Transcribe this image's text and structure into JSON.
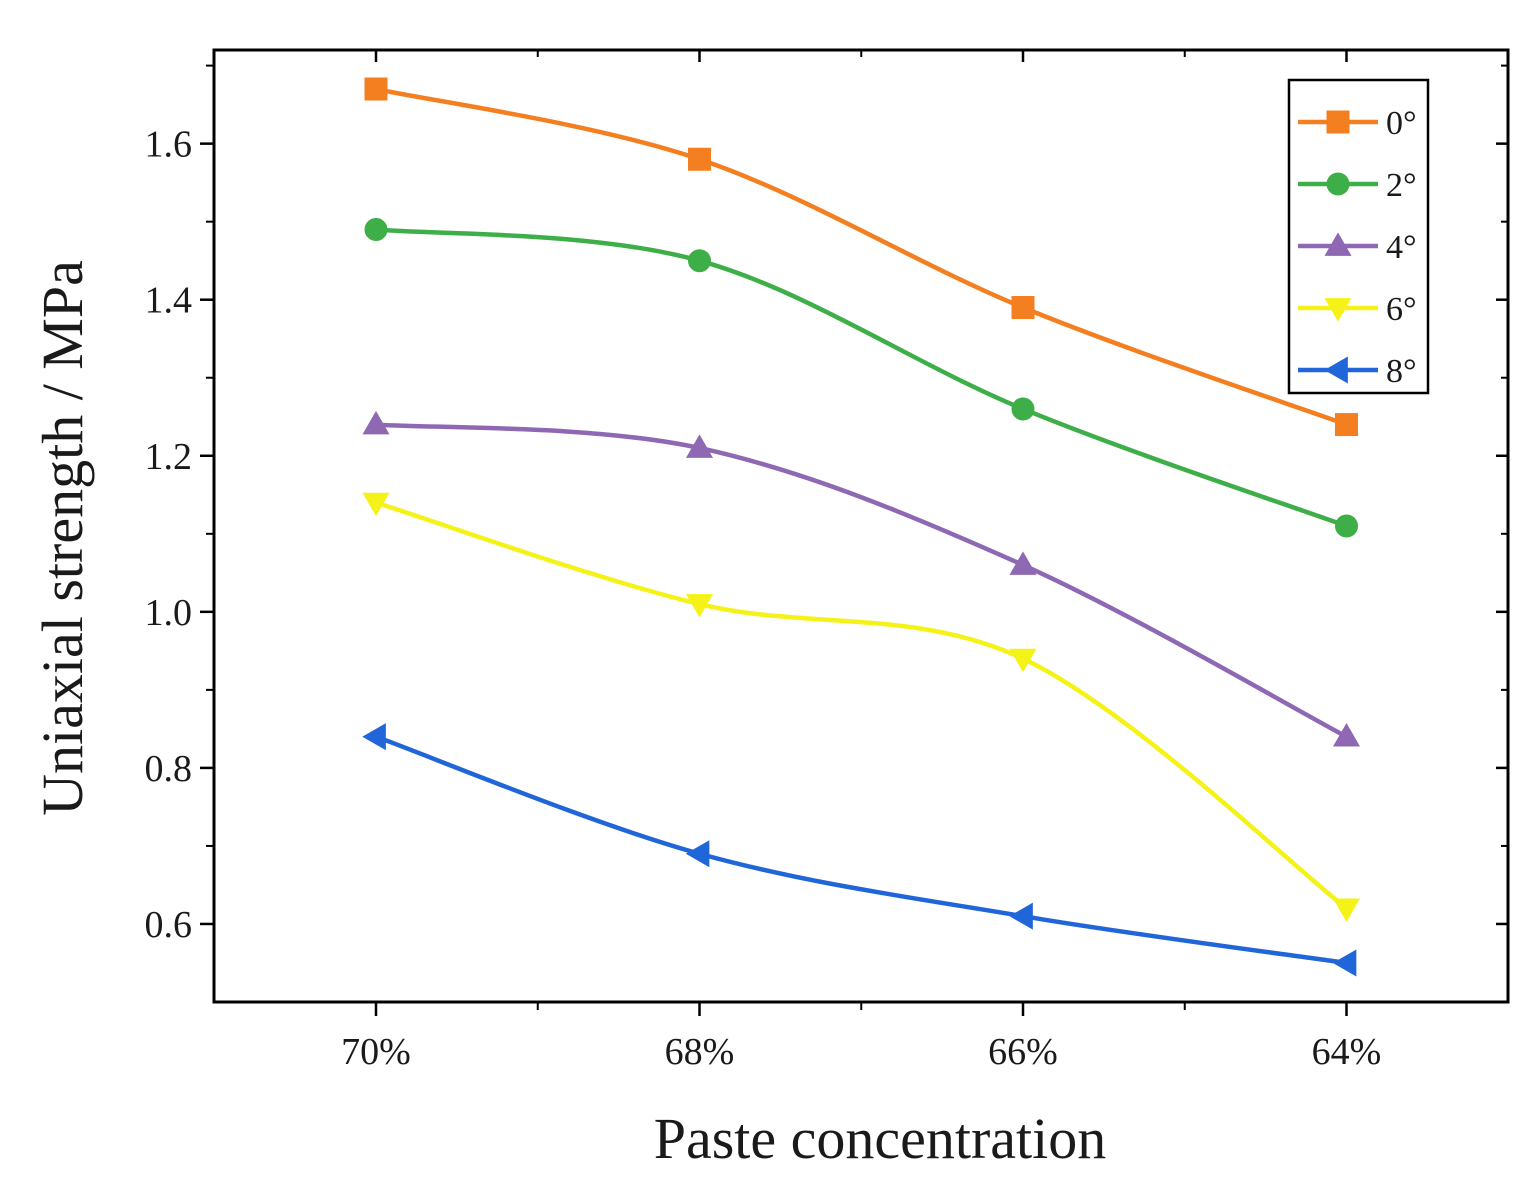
{
  "chart_data": {
    "type": "line",
    "title": "",
    "xlabel": "Paste concentration",
    "ylabel": "Uniaxial strength / MPa",
    "categories": [
      "70%",
      "68%",
      "66%",
      "64%"
    ],
    "ylim": [
      0.5,
      1.72
    ],
    "yticks": [
      0.6,
      0.8,
      1.0,
      1.2,
      1.4,
      1.6
    ],
    "ytick_labels": [
      "0.6",
      "0.8",
      "1.0",
      "1.2",
      "1.4",
      "1.6"
    ],
    "grid": false,
    "legend_position": "top-right",
    "series": [
      {
        "name": "0°",
        "color": "#F47F20",
        "marker": "square",
        "values": [
          1.67,
          1.58,
          1.39,
          1.24
        ]
      },
      {
        "name": "2°",
        "color": "#3EAE49",
        "marker": "circle",
        "values": [
          1.49,
          1.45,
          1.26,
          1.11
        ]
      },
      {
        "name": "4°",
        "color": "#8E68B3",
        "marker": "triangle-up",
        "values": [
          1.24,
          1.21,
          1.06,
          0.84
        ]
      },
      {
        "name": "6°",
        "color": "#F5F218",
        "marker": "triangle-down",
        "values": [
          1.14,
          1.01,
          0.94,
          0.62
        ]
      },
      {
        "name": "8°",
        "color": "#2166D9",
        "marker": "triangle-left",
        "values": [
          0.84,
          0.69,
          0.61,
          0.55
        ]
      }
    ]
  }
}
